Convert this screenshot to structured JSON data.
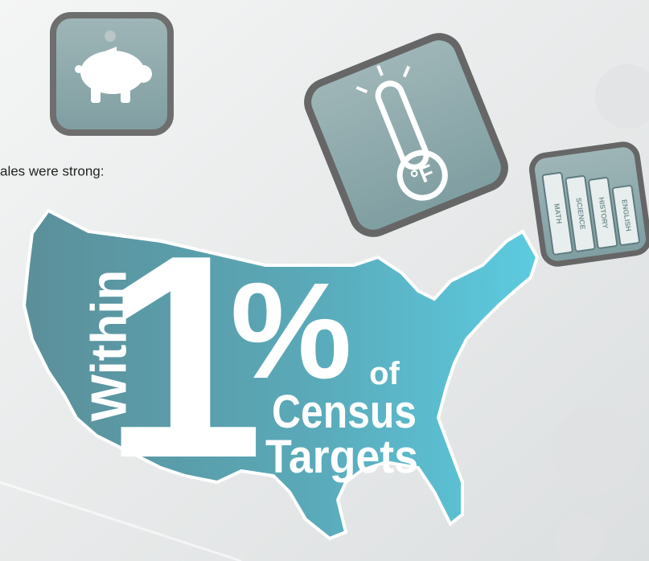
{
  "caption": "ales were strong:",
  "headline": {
    "within": "Within",
    "number": "1",
    "percent": "%",
    "of": "of",
    "census": "Census",
    "targets": "Targets"
  },
  "thermometer": {
    "unit": "°F"
  },
  "books": [
    "MATH",
    "SCIENCE",
    "HISTORY",
    "ENGLISH"
  ]
}
